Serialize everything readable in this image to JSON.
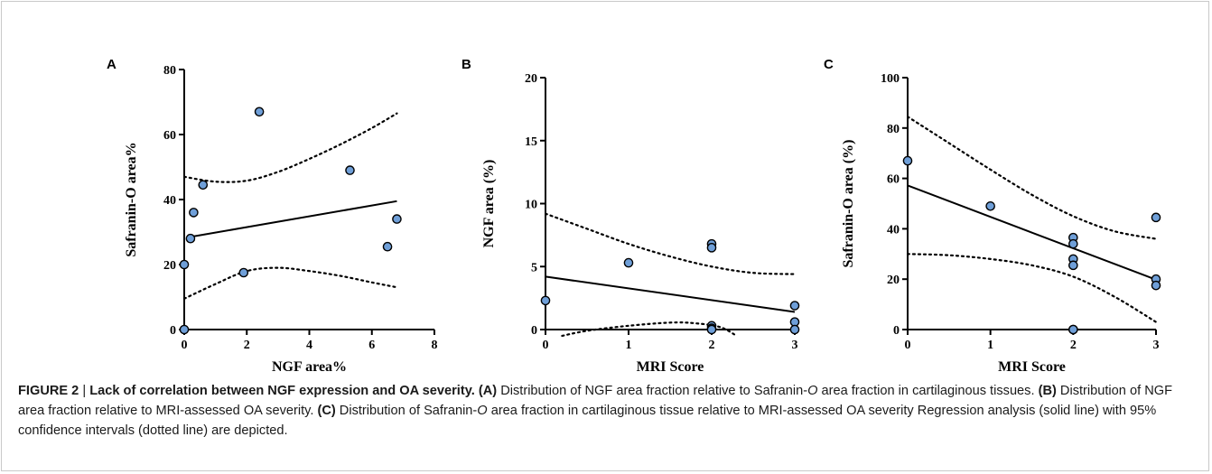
{
  "chart_data": [
    {
      "type": "scatter",
      "panel_label": "A",
      "xlabel": "NGF area%",
      "ylabel": "Safranin-O area%",
      "xlim": [
        0,
        8
      ],
      "ylim": [
        0,
        80
      ],
      "xticks": [
        0,
        2,
        4,
        6,
        8
      ],
      "yticks": [
        0,
        20,
        40,
        60,
        80
      ],
      "x": [
        0.0,
        0.0,
        0.2,
        0.3,
        0.6,
        1.9,
        2.4,
        5.3,
        6.5,
        6.8
      ],
      "y": [
        0,
        20,
        28,
        36,
        44.5,
        17.5,
        67,
        49,
        25.5,
        34
      ],
      "regression_line": [
        [
          0.2,
          28.5
        ],
        [
          6.8,
          39.5
        ]
      ],
      "ci_upper": [
        [
          0.0,
          47
        ],
        [
          1.0,
          45.5
        ],
        [
          2.0,
          45.8
        ],
        [
          3.0,
          48.5
        ],
        [
          4.0,
          52.5
        ],
        [
          5.0,
          57
        ],
        [
          6.0,
          62
        ],
        [
          6.8,
          66.5
        ]
      ],
      "ci_lower": [
        [
          0.0,
          9.5
        ],
        [
          1.0,
          14
        ],
        [
          2.0,
          18
        ],
        [
          3.0,
          19
        ],
        [
          4.0,
          18
        ],
        [
          5.0,
          16.5
        ],
        [
          6.0,
          14.5
        ],
        [
          6.8,
          13
        ]
      ]
    },
    {
      "type": "scatter",
      "panel_label": "B",
      "xlabel": "MRI Score",
      "ylabel": "NGF area (%)",
      "xlim": [
        0,
        3
      ],
      "ylim": [
        0,
        20
      ],
      "xticks": [
        0,
        1,
        2,
        3
      ],
      "yticks": [
        0,
        5,
        10,
        15,
        20
      ],
      "x": [
        0,
        1,
        2,
        2,
        2,
        2,
        2,
        3,
        3,
        3
      ],
      "y": [
        2.3,
        5.3,
        6.8,
        6.5,
        0.3,
        0.1,
        0.0,
        1.9,
        0.6,
        0.0
      ],
      "regression_line": [
        [
          0,
          4.2
        ],
        [
          3,
          1.4
        ]
      ],
      "ci_upper": [
        [
          0,
          9.2
        ],
        [
          0.5,
          8.0
        ],
        [
          1.0,
          6.8
        ],
        [
          1.5,
          5.8
        ],
        [
          2.0,
          5.0
        ],
        [
          2.5,
          4.5
        ],
        [
          3.0,
          4.4
        ]
      ],
      "ci_lower": [
        [
          0.2,
          -0.5
        ],
        [
          0.5,
          -0.1
        ],
        [
          1.0,
          0.3
        ],
        [
          1.5,
          0.55
        ],
        [
          1.8,
          0.5
        ],
        [
          2.1,
          0.2
        ],
        [
          2.3,
          -0.5
        ]
      ]
    },
    {
      "type": "scatter",
      "panel_label": "C",
      "xlabel": "MRI Score",
      "ylabel": "Safranin-O area (%)",
      "xlim": [
        0,
        3
      ],
      "ylim": [
        0,
        100
      ],
      "xticks": [
        0,
        1,
        2,
        3
      ],
      "yticks": [
        0,
        20,
        40,
        60,
        80,
        100
      ],
      "x": [
        0,
        1,
        2,
        2,
        2,
        2,
        2,
        2,
        3,
        3,
        3
      ],
      "y": [
        67,
        49,
        36.5,
        34,
        28,
        25.5,
        0,
        0,
        44.5,
        20,
        17.5
      ],
      "regression_line": [
        [
          0,
          57.2
        ],
        [
          3,
          19.8
        ]
      ],
      "ci_upper": [
        [
          0,
          84.5
        ],
        [
          0.5,
          74
        ],
        [
          1.0,
          63.5
        ],
        [
          1.5,
          53.5
        ],
        [
          2.0,
          45
        ],
        [
          2.5,
          39
        ],
        [
          3.0,
          36
        ]
      ],
      "ci_lower": [
        [
          0,
          30
        ],
        [
          0.5,
          29.5
        ],
        [
          1.0,
          28
        ],
        [
          1.5,
          25.5
        ],
        [
          2.0,
          21
        ],
        [
          2.5,
          13
        ],
        [
          3.0,
          3
        ]
      ]
    }
  ],
  "caption": {
    "figure_label": "FIGURE 2",
    "separator": " | ",
    "title": "Lack of correlation between NGF expression and OA severity.",
    "a_label": "(A)",
    "a_text_1": " Distribution of NGF area fraction relative to Safranin-",
    "a_italic": "O",
    "a_text_2": " area fraction in cartilaginous tissues. ",
    "b_label": "(B)",
    "b_text": " Distribution of NGF area fraction relative to MRI-assessed OA severity. ",
    "c_label": "(C)",
    "c_text_1": " Distribution of Safranin-",
    "c_italic": "O",
    "c_text_2": " area fraction in cartilaginous tissue relative to MRI-assessed OA severity Regression analysis (solid line) with 95% confidence intervals (dotted line) are depicted."
  }
}
